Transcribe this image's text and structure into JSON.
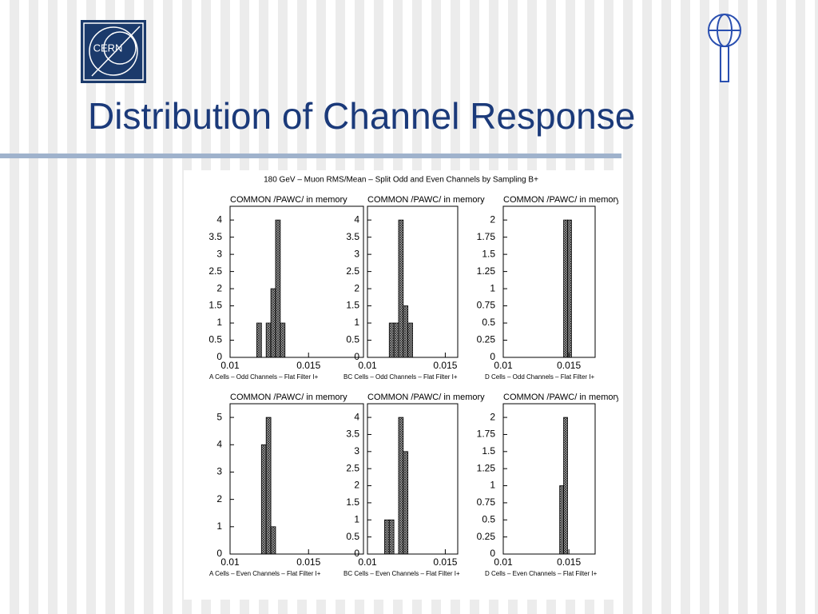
{
  "slide": {
    "title": "Distribution of Channel Response"
  },
  "logo": {
    "text": "CERN"
  },
  "figure": {
    "title": "180 GeV – Muon RMS/Mean – Split Odd and Even Channels by Sampling B+"
  },
  "chart_data": [
    {
      "type": "histogram",
      "title": "COMMON /PAWC/ in memory",
      "x_label": "A Cells – Odd Channels – Flat Filter I+",
      "color": "#555555",
      "bins": [
        0.0117,
        0.012,
        0.0123,
        0.0126,
        0.0129,
        0.0132,
        0.0135
      ],
      "values": [
        1,
        0,
        1,
        2,
        4,
        1
      ],
      "xlim": [
        0.01,
        0.0185
      ],
      "ylim": [
        0,
        4.4
      ],
      "xticks": [
        0.01,
        0.015
      ],
      "yticks": [
        0,
        0.5,
        1,
        1.5,
        2,
        2.5,
        3,
        3.5,
        4
      ]
    },
    {
      "type": "histogram",
      "title": "COMMON /PAWC/ in memory",
      "x_label": "BC Cells – Odd Channels – Flat Filter I+",
      "color": "#555555",
      "bins": [
        0.0114,
        0.0117,
        0.012,
        0.0123,
        0.0126,
        0.0129
      ],
      "values": [
        1,
        1,
        4,
        1.5,
        1
      ],
      "xlim": [
        0.01,
        0.0158
      ],
      "ylim": [
        0,
        4.4
      ],
      "xticks": [
        0.01,
        0.015
      ],
      "yticks": [
        0,
        0.5,
        1,
        1.5,
        2,
        2.5,
        3,
        3.5,
        4
      ]
    },
    {
      "type": "histogram",
      "title": "COMMON /PAWC/ in memory",
      "x_label": "D Cells – Odd Channels – Flat Filter I+",
      "color": "#555555",
      "bins": [
        0.0146,
        0.0149,
        0.0152
      ],
      "values": [
        2,
        2
      ],
      "xlim": [
        0.01,
        0.017
      ],
      "ylim": [
        0,
        2.2
      ],
      "xticks": [
        0.01,
        0.015
      ],
      "yticks": [
        0,
        0.25,
        0.5,
        0.75,
        1,
        1.25,
        1.5,
        1.75,
        2
      ]
    },
    {
      "type": "histogram",
      "title": "COMMON /PAWC/ in memory",
      "x_label": "A Cells – Even Channels – Flat Filter I+",
      "color": "#555555",
      "bins": [
        0.012,
        0.0123,
        0.0126,
        0.0129
      ],
      "values": [
        4,
        5,
        1
      ],
      "xlim": [
        0.01,
        0.0185
      ],
      "ylim": [
        0,
        5.5
      ],
      "xticks": [
        0.01,
        0.015
      ],
      "yticks": [
        0,
        1,
        2,
        3,
        4,
        5
      ]
    },
    {
      "type": "histogram",
      "title": "COMMON /PAWC/ in memory",
      "x_label": "BC Cells – Even Channels – Flat Filter I+",
      "color": "#555555",
      "bins": [
        0.0111,
        0.0114,
        0.0117,
        0.012,
        0.0123,
        0.0126
      ],
      "values": [
        1,
        1,
        0,
        4,
        3
      ],
      "xlim": [
        0.01,
        0.0158
      ],
      "ylim": [
        0,
        4.4
      ],
      "xticks": [
        0.01,
        0.015
      ],
      "yticks": [
        0,
        0.5,
        1,
        1.5,
        2,
        2.5,
        3,
        3.5,
        4
      ]
    },
    {
      "type": "histogram",
      "title": "COMMON /PAWC/ in memory",
      "x_label": "D Cells – Even Channels – Flat Filter I+",
      "color": "#555555",
      "bins": [
        0.0143,
        0.0146,
        0.0149
      ],
      "values": [
        1,
        2
      ],
      "xlim": [
        0.01,
        0.017
      ],
      "ylim": [
        0,
        2.2
      ],
      "xticks": [
        0.01,
        0.015
      ],
      "yticks": [
        0,
        0.25,
        0.5,
        0.75,
        1,
        1.25,
        1.5,
        1.75,
        2
      ]
    }
  ]
}
